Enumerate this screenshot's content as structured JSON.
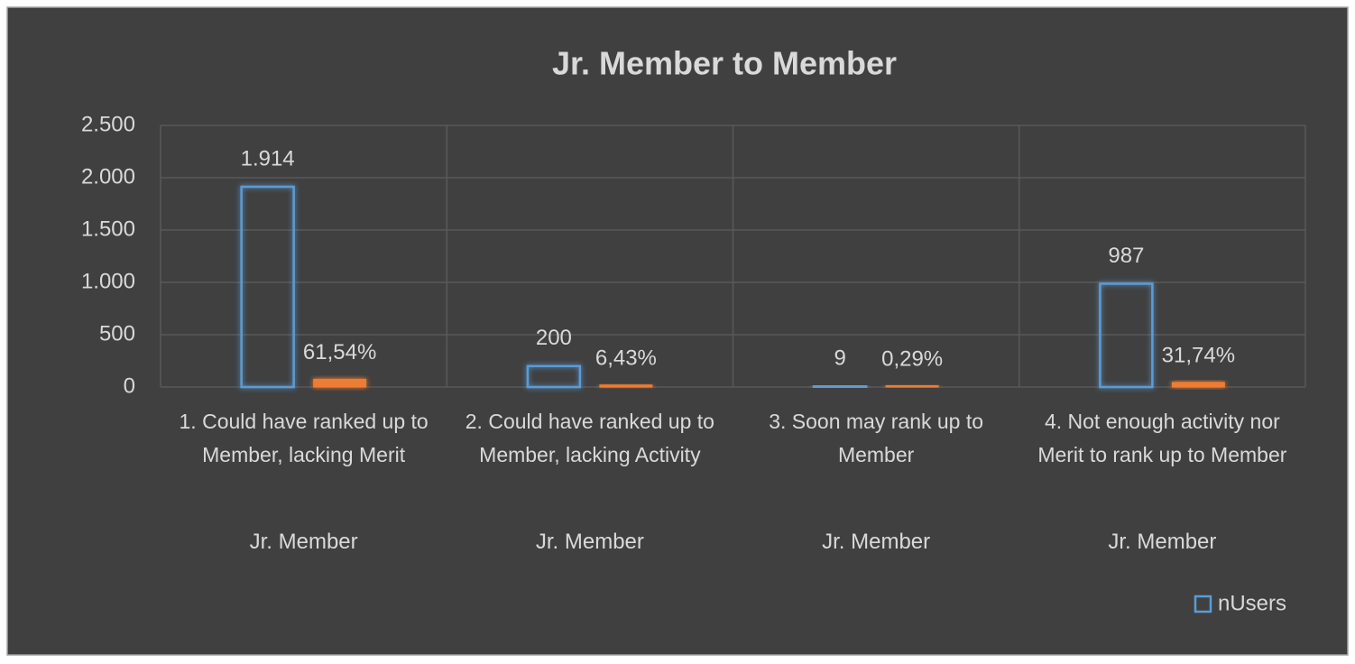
{
  "chart_data": {
    "type": "bar",
    "title": "Jr. Member to Member",
    "categories": [
      "1. Could have ranked up to Member, lacking Merit",
      "2. Could have ranked up to Member, lacking Activity",
      "3. Soon may rank up to Member",
      "4. Not enough activity nor Merit to rank up to Member"
    ],
    "group_labels": [
      "Jr. Member",
      "Jr. Member",
      "Jr. Member",
      "Jr. Member"
    ],
    "series": [
      {
        "name": "nUsers",
        "color": "#5b9bd5",
        "values": [
          1914,
          200,
          9,
          987
        ],
        "value_labels": [
          "1.914",
          "200",
          "9",
          "987"
        ]
      },
      {
        "color": "#ed7d31",
        "values": [
          61.54,
          6.43,
          0.29,
          31.74
        ],
        "value_labels": [
          "61,54%",
          "6,43%",
          "0,29%",
          "31,74%"
        ]
      }
    ],
    "ylim": [
      0,
      2500
    ],
    "yticks": [
      0,
      500,
      {
        "value": 1000,
        "label": "1.000"
      },
      {
        "value": 1500,
        "label": "1.500"
      },
      {
        "value": 2000,
        "label": "2.000"
      },
      {
        "value": 2500,
        "label": "2.500"
      }
    ],
    "grid": true,
    "legend": "bottom-right"
  }
}
